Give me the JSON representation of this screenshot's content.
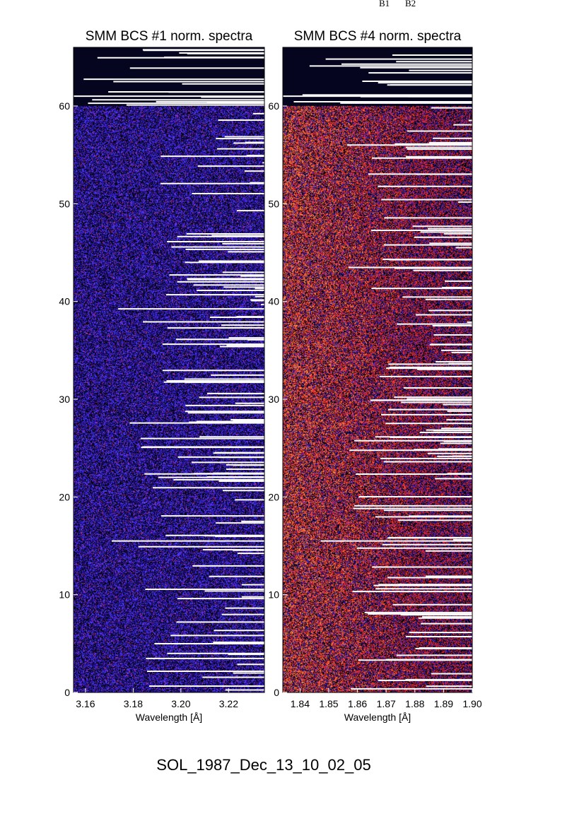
{
  "top_labels": [
    "B1",
    "B2"
  ],
  "footer": "SOL_1987_Dec_13_10_02_05",
  "chart_data": [
    {
      "type": "heatmap",
      "title": "SMM BCS #1 norm. spectra",
      "xlabel": "Wavelength [Å]",
      "ylabel": "",
      "xlim": [
        3.155,
        3.235
      ],
      "ylim": [
        0,
        66
      ],
      "x_ticks": [
        3.16,
        3.18,
        3.2,
        3.22
      ],
      "x_tick_labels": [
        "3.16",
        "3.18",
        "3.20",
        "3.22"
      ],
      "y_ticks": [
        0,
        10,
        20,
        30,
        40,
        50,
        60
      ],
      "y_tick_labels": [
        "0",
        "10",
        "20",
        "30",
        "40",
        "50",
        "60"
      ],
      "data_extent_y": [
        0,
        60
      ],
      "colormap": [
        "#050514",
        "#2a10a8",
        "#4b3cff",
        "#c03080"
      ],
      "background": "#050520",
      "grid": false
    },
    {
      "type": "heatmap",
      "title": "SMM BCS #4 norm. spectra",
      "xlabel": "Wavelength [Å]",
      "ylabel": "",
      "xlim": [
        1.834,
        1.9
      ],
      "ylim": [
        0,
        66
      ],
      "x_ticks": [
        1.84,
        1.85,
        1.86,
        1.87,
        1.88,
        1.89,
        1.9
      ],
      "x_tick_labels": [
        "1.84",
        "1.85",
        "1.86",
        "1.87",
        "1.88",
        "1.89",
        "1.90"
      ],
      "y_ticks": [
        0,
        10,
        20,
        30,
        40,
        50,
        60
      ],
      "y_tick_labels": [
        "0",
        "10",
        "20",
        "30",
        "40",
        "50",
        "60"
      ],
      "data_extent_y": [
        0,
        60
      ],
      "colormap": [
        "#050514",
        "#3020c0",
        "#e02828",
        "#ff8a3a"
      ],
      "background": "#050520",
      "grid": false
    }
  ]
}
